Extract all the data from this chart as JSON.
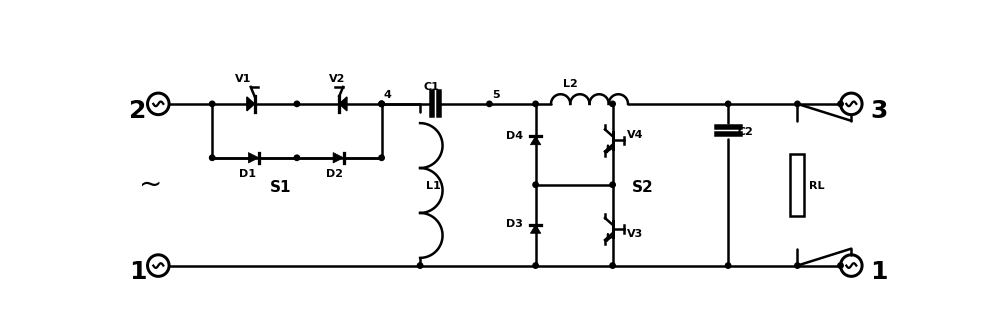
{
  "bg_color": "#ffffff",
  "line_color": "#000000",
  "lw": 1.8,
  "fig_width": 10.0,
  "fig_height": 3.33,
  "dpi": 100,
  "xlim": [
    0,
    100
  ],
  "ylim": [
    0,
    33.3
  ]
}
